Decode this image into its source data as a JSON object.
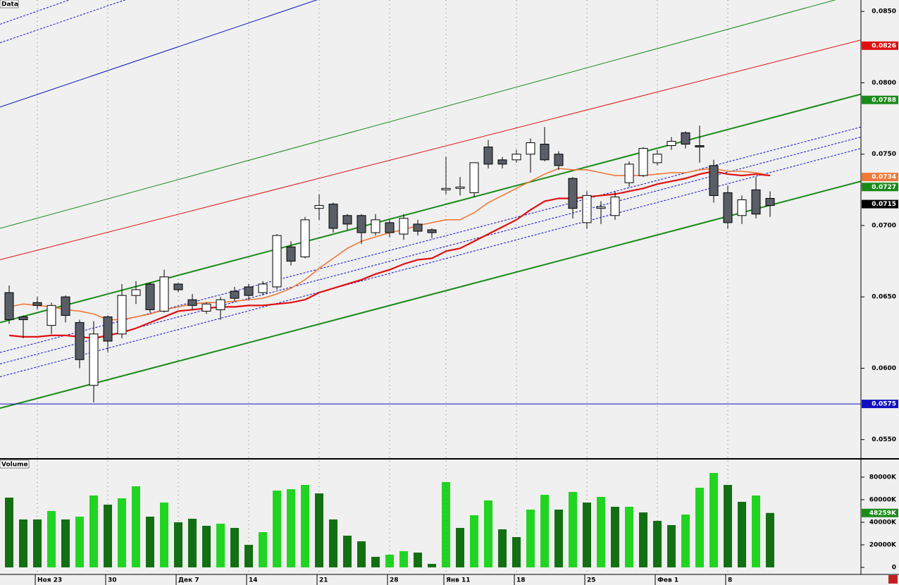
{
  "chart_data": [
    {
      "type": "candlestick",
      "title": "Data",
      "open": [
        0.0653,
        0.0636,
        0.0646,
        0.063,
        0.065,
        0.0632,
        0.0588,
        0.0636,
        0.0624,
        0.0651,
        0.0659,
        0.064,
        0.0659,
        0.0648,
        0.064,
        0.0641,
        0.0654,
        0.0657,
        0.0653,
        0.0657,
        0.0685,
        0.0678,
        0.0712,
        0.0715,
        0.0707,
        0.0707,
        0.0695,
        0.0702,
        0.0694,
        0.0701,
        0.0697,
        0.0725,
        0.0726,
        0.0723,
        0.0755,
        0.0746,
        0.0746,
        0.075,
        0.0757,
        0.075,
        0.0733,
        0.0702,
        0.0712,
        0.0707,
        0.073,
        0.0735,
        0.0744,
        0.0756,
        0.0765,
        0.0756,
        0.0742,
        0.0723,
        0.0707,
        0.0725,
        0.0719
      ],
      "close": [
        0.0634,
        0.0634,
        0.0644,
        0.0644,
        0.0637,
        0.0606,
        0.0624,
        0.0619,
        0.0651,
        0.0655,
        0.0641,
        0.0664,
        0.0655,
        0.0644,
        0.0645,
        0.0648,
        0.0649,
        0.0651,
        0.0659,
        0.0693,
        0.0675,
        0.0704,
        0.0714,
        0.0698,
        0.0701,
        0.0695,
        0.0704,
        0.0695,
        0.0705,
        0.0696,
        0.0695,
        0.0726,
        0.0727,
        0.0744,
        0.0743,
        0.0743,
        0.075,
        0.0758,
        0.0746,
        0.0742,
        0.0712,
        0.0721,
        0.0713,
        0.072,
        0.0743,
        0.0754,
        0.075,
        0.0759,
        0.0757,
        0.0755,
        0.0721,
        0.0702,
        0.0718,
        0.0708,
        0.0714
      ],
      "high": [
        0.0658,
        0.0637,
        0.065,
        0.0646,
        0.0651,
        0.0634,
        0.0633,
        0.0637,
        0.0659,
        0.0661,
        0.066,
        0.0669,
        0.066,
        0.0652,
        0.0646,
        0.065,
        0.0657,
        0.0659,
        0.0661,
        0.0694,
        0.0689,
        0.0706,
        0.0722,
        0.0716,
        0.0708,
        0.0708,
        0.0708,
        0.0704,
        0.0708,
        0.0704,
        0.0698,
        0.0748,
        0.0734,
        0.0744,
        0.076,
        0.0748,
        0.0753,
        0.0761,
        0.0769,
        0.0752,
        0.0734,
        0.0724,
        0.0717,
        0.0724,
        0.0745,
        0.0755,
        0.0753,
        0.0762,
        0.0766,
        0.077,
        0.0746,
        0.0728,
        0.0721,
        0.0734,
        0.0724
      ],
      "low": [
        0.0631,
        0.0621,
        0.0641,
        0.0624,
        0.0632,
        0.06,
        0.0576,
        0.0611,
        0.0621,
        0.0645,
        0.0639,
        0.0639,
        0.0653,
        0.0641,
        0.0638,
        0.0634,
        0.0647,
        0.0648,
        0.0651,
        0.0655,
        0.0672,
        0.0677,
        0.0704,
        0.0695,
        0.0697,
        0.0687,
        0.0693,
        0.0692,
        0.069,
        0.0693,
        0.0691,
        0.0722,
        0.0721,
        0.072,
        0.074,
        0.074,
        0.0744,
        0.0737,
        0.0745,
        0.0739,
        0.0705,
        0.0698,
        0.0701,
        0.0704,
        0.0727,
        0.0734,
        0.0742,
        0.0753,
        0.0754,
        0.0744,
        0.0716,
        0.0698,
        0.0701,
        0.0705,
        0.0706
      ],
      "up_color": "#ffffff",
      "down_color": "#5a5e66",
      "overlays": [
        {
          "color": "#f07838",
          "width": 1.6,
          "values": [
            0.0643,
            0.0645,
            0.0644,
            0.0643,
            0.0641,
            0.064,
            0.0638,
            0.0634,
            0.0634,
            0.0636,
            0.0638,
            0.0641,
            0.0643,
            0.0645,
            0.0646,
            0.0646,
            0.0647,
            0.0648,
            0.0649,
            0.0652,
            0.0656,
            0.0662,
            0.067,
            0.0677,
            0.0684,
            0.0689,
            0.0692,
            0.0695,
            0.0697,
            0.07,
            0.0702,
            0.0704,
            0.0704,
            0.0709,
            0.0716,
            0.0721,
            0.0726,
            0.0731,
            0.0736,
            0.074,
            0.0739,
            0.0739,
            0.0737,
            0.0735,
            0.0735,
            0.0735,
            0.0736,
            0.0737,
            0.0737,
            0.0739,
            0.074,
            0.0738,
            0.0738,
            0.0737,
            0.0735
          ]
        },
        {
          "color": "#e01010",
          "width": 2.2,
          "values": [
            0.0623,
            0.0622,
            0.0622,
            0.0623,
            0.0623,
            0.0622,
            0.0621,
            0.0623,
            0.0625,
            0.0628,
            0.0632,
            0.0636,
            0.064,
            0.0641,
            0.0642,
            0.0643,
            0.0643,
            0.0644,
            0.0644,
            0.0645,
            0.0646,
            0.0648,
            0.0653,
            0.0656,
            0.0659,
            0.0662,
            0.0666,
            0.0669,
            0.0673,
            0.0676,
            0.0677,
            0.0682,
            0.0684,
            0.0689,
            0.0694,
            0.0699,
            0.0704,
            0.0711,
            0.0717,
            0.0719,
            0.0719,
            0.072,
            0.0721,
            0.0722,
            0.0724,
            0.0726,
            0.0729,
            0.0731,
            0.0733,
            0.0736,
            0.0738,
            0.0736,
            0.0735,
            0.0736,
            0.0735
          ]
        }
      ],
      "trendlines": [
        {
          "color": "#1a8a1a",
          "width": 2,
          "dashed": false,
          "start": 0.0572,
          "end": 0.0731
        },
        {
          "color": "#1a8a1a",
          "width": 2,
          "dashed": false,
          "start": 0.0632,
          "end": 0.0792
        },
        {
          "color": "#e01010",
          "width": 1,
          "dashed": false,
          "start": 0.0676,
          "end": 0.083
        },
        {
          "color": "#1a8a1a",
          "width": 1,
          "dashed": false,
          "start": 0.0698,
          "end": 0.0863
        },
        {
          "color": "#1010c0",
          "width": 1,
          "dashed": false,
          "start": 0.0783,
          "end": 0.0987
        },
        {
          "color": "#1010c0",
          "width": 1,
          "dashed": true,
          "start": 0.0828,
          "end": 0.1035
        },
        {
          "color": "#1010c0",
          "width": 1,
          "dashed": true,
          "start": 0.0841,
          "end": 0.1053
        },
        {
          "color": "#1010c0",
          "width": 1,
          "dashed": true,
          "start": 0.0611,
          "end": 0.0769
        },
        {
          "color": "#1010c0",
          "width": 1,
          "dashed": true,
          "start": 0.0603,
          "end": 0.0762
        },
        {
          "color": "#1010c0",
          "width": 1,
          "dashed": true,
          "start": 0.0594,
          "end": 0.0754
        }
      ],
      "hlines": [
        {
          "value": 0.0575,
          "color": "#1010c0"
        }
      ],
      "markers": [
        {
          "value": 0.0826,
          "label": "0.0826",
          "color": "#e01010"
        },
        {
          "value": 0.0788,
          "label": "0.0788",
          "color": "#1a8a1a"
        },
        {
          "value": 0.0734,
          "label": "0.0734",
          "color": "#f07838"
        },
        {
          "value": 0.0727,
          "label": "0.0727",
          "color": "#1a8a1a"
        },
        {
          "value": 0.0715,
          "label": "0.0715",
          "color": "#000000"
        },
        {
          "value": 0.0575,
          "label": "0.0575",
          "color": "#1010c0"
        }
      ],
      "ylim": [
        0.0538,
        0.0858
      ],
      "yticks": [
        {
          "value": 0.085,
          "label": "0.0850"
        },
        {
          "value": 0.08,
          "label": "0.0800"
        },
        {
          "value": 0.075,
          "label": "0.0750"
        },
        {
          "value": 0.07,
          "label": "0.0700"
        },
        {
          "value": 0.065,
          "label": "0.0650"
        },
        {
          "value": 0.06,
          "label": "0.0600"
        },
        {
          "value": 0.055,
          "label": "0.0550"
        }
      ]
    },
    {
      "type": "bar",
      "title": "Volume",
      "categories": [
        null,
        null,
        "Ноя 23",
        null,
        null,
        null,
        null,
        "30",
        null,
        null,
        null,
        null,
        "Дек 7",
        null,
        null,
        null,
        null,
        "14",
        null,
        null,
        null,
        null,
        "21",
        null,
        null,
        null,
        null,
        "28",
        null,
        null,
        null,
        "Янв 11",
        null,
        null,
        null,
        null,
        "18",
        null,
        null,
        null,
        null,
        "25",
        null,
        null,
        null,
        null,
        "Фев 1",
        null,
        null,
        null,
        null,
        "8",
        null,
        null,
        null
      ],
      "values": [
        61875,
        42500,
        42500,
        50000,
        42500,
        45000,
        63750,
        55625,
        61250,
        71875,
        45000,
        57500,
        40000,
        43125,
        36875,
        38750,
        35000,
        20000,
        31250,
        68125,
        69375,
        73125,
        65625,
        42500,
        28125,
        23125,
        9375,
        11250,
        14375,
        13125,
        3125,
        75625,
        35000,
        46250,
        59375,
        33750,
        26875,
        51250,
        64375,
        51250,
        66875,
        57500,
        62500,
        53750,
        53750,
        48750,
        41250,
        37500,
        46875,
        70625,
        83750,
        73125,
        58125,
        63750,
        48259
      ],
      "colors": [
        "#127012",
        "#127012",
        "#127012",
        "#22d422",
        "#127012",
        "#22d422",
        "#22d422",
        "#127012",
        "#22d422",
        "#22d422",
        "#127012",
        "#22d422",
        "#127012",
        "#127012",
        "#127012",
        "#22d422",
        "#127012",
        "#127012",
        "#22d422",
        "#22d422",
        "#22d422",
        "#22d422",
        "#127012",
        "#127012",
        "#127012",
        "#127012",
        "#127012",
        "#22d422",
        "#22d422",
        "#127012",
        "#127012",
        "#22d422",
        "#127012",
        "#22d422",
        "#22d422",
        "#127012",
        "#127012",
        "#22d422",
        "#22d422",
        "#127012",
        "#22d422",
        "#127012",
        "#22d422",
        "#127012",
        "#22d422",
        "#127012",
        "#127012",
        "#127012",
        "#22d422",
        "#22d422",
        "#22d422",
        "#127012",
        "#127012",
        "#22d422",
        "#127012"
      ],
      "markers": [
        {
          "value": 48259,
          "label": "48259K",
          "color": "#1a8a1a"
        }
      ],
      "ylim": [
        -6250,
        95000
      ],
      "yticks": [
        0,
        {
          "value": 20000,
          "label": "20000K"
        },
        {
          "value": 40000,
          "label": "40000K"
        },
        {
          "value": 60000,
          "label": "60000K"
        },
        {
          "value": 80000,
          "label": "80000K"
        }
      ],
      "xgrid": true
    }
  ]
}
